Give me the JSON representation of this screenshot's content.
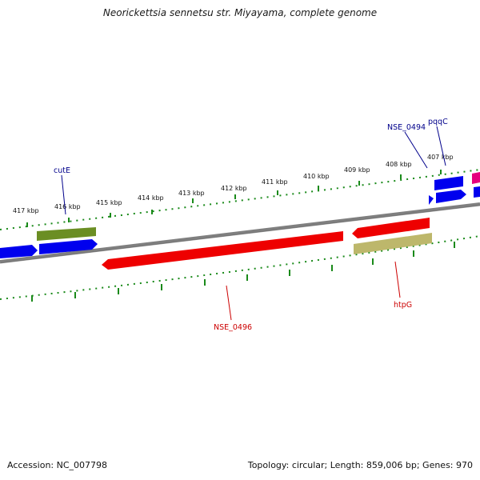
{
  "header": {
    "title": "Neorickettsia sennetsu str. Miyayama, complete genome"
  },
  "footer": {
    "accession": "Accession: NC_007798",
    "summary": "Topology: circular; Length: 859,006 bp; Genes: 970"
  },
  "ticks": [
    "407 kbp",
    "408 kbp",
    "409 kbp",
    "410 kbp",
    "411 kbp",
    "412 kbp",
    "413 kbp",
    "414 kbp",
    "415 kbp",
    "416 kbp",
    "417 kbp"
  ],
  "gene_labels": {
    "cutE": "cutE",
    "pqqC": "pqqC",
    "nse0494": "NSE_0494",
    "nse0496": "NSE_0496",
    "htpG": "htpG"
  },
  "colors": {
    "blue": "#0000ee",
    "green": "#6b8e23",
    "red": "#ee0000",
    "khaki": "#bdb76b",
    "magenta": "#e5007e",
    "backbone": "#7f7f7f",
    "ruler": "#1a8a1a",
    "label_blue": "#00008b",
    "label_red": "#cc0000"
  }
}
